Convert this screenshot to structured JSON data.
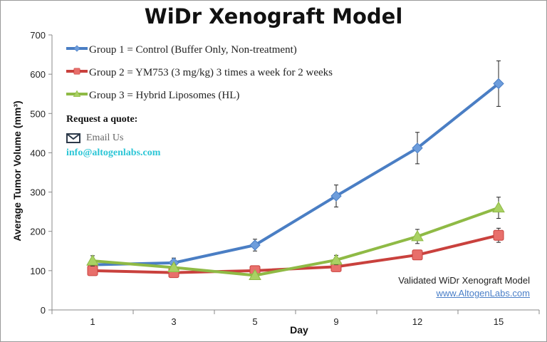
{
  "chart_data": {
    "type": "line",
    "title": "WiDr Xenograft Model",
    "xlabel": "Day",
    "ylabel": "Average Tumor Volume (mm³)",
    "categories": [
      "1",
      "3",
      "5",
      "9",
      "12",
      "15"
    ],
    "ylim": [
      0,
      700
    ],
    "yticks": [
      0,
      100,
      200,
      300,
      400,
      500,
      600,
      700
    ],
    "grid": false,
    "legend_placement": "top-left",
    "series": [
      {
        "name": "Group 1 = Control (Buffer Only, Non-treatment)",
        "color": "#4a7ec4",
        "marker": "diamond",
        "values": [
          115,
          120,
          165,
          290,
          412,
          576
        ],
        "errors": [
          8,
          12,
          15,
          28,
          40,
          58
        ]
      },
      {
        "name": "Group 2 = YM753 (3 mg/kg) 3 times a week for 2 weeks",
        "color": "#c9413d",
        "marker": "square",
        "values": [
          100,
          95,
          100,
          110,
          140,
          190
        ],
        "errors": [
          6,
          6,
          6,
          8,
          12,
          18
        ]
      },
      {
        "name": "Group 3 = Hybrid Liposomes (HL)",
        "color": "#8fba45",
        "marker": "triangle",
        "values": [
          125,
          108,
          88,
          127,
          187,
          260
        ],
        "errors": [
          13,
          8,
          6,
          12,
          18,
          27
        ]
      }
    ]
  },
  "annotations": {
    "request_quote": "Request a quote:",
    "email_us": "Email Us",
    "email": "info@altogenlabs.com",
    "validated": "Validated WiDr Xenograft Model",
    "website": "www.AltogenLabs.com"
  }
}
